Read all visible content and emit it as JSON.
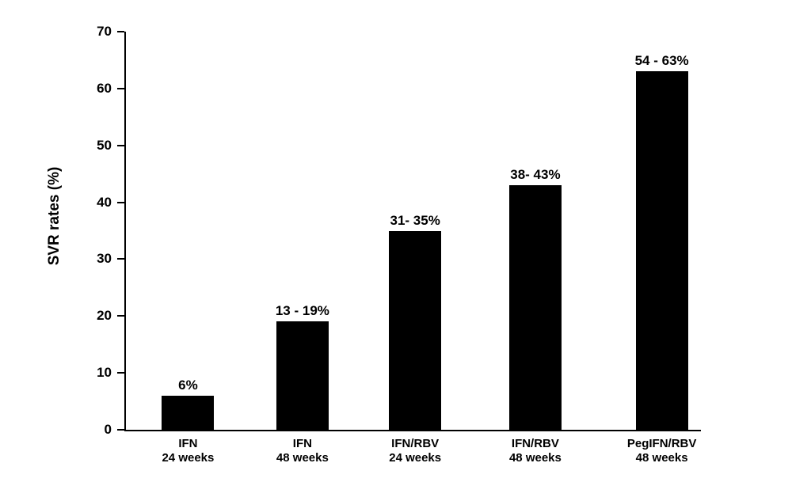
{
  "chart_data": {
    "type": "bar",
    "title": "",
    "xlabel": "",
    "ylabel": "SVR rates (%)",
    "ylim": [
      0,
      70
    ],
    "yticks": [
      0,
      10,
      20,
      30,
      40,
      50,
      60,
      70
    ],
    "grid": false,
    "legend": false,
    "bar_color": "#000000",
    "background_color": "#ffffff",
    "bars": [
      {
        "category_line1": "IFN",
        "category_line2": "24 weeks",
        "label": "6%",
        "value": 6,
        "range": [
          6,
          6
        ]
      },
      {
        "category_line1": "IFN",
        "category_line2": "48 weeks",
        "label": "13 - 19%",
        "value": 19,
        "range": [
          13,
          19
        ]
      },
      {
        "category_line1": "IFN/RBV",
        "category_line2": "24 weeks",
        "label": "31- 35%",
        "value": 35,
        "range": [
          31,
          35
        ]
      },
      {
        "category_line1": "IFN/RBV",
        "category_line2": "48 weeks",
        "label": "38- 43%",
        "value": 43,
        "range": [
          38,
          43
        ]
      },
      {
        "category_line1": "PegIFN/RBV",
        "category_line2": "48 weeks",
        "label": "54 - 63%",
        "value": 63,
        "range": [
          54,
          63
        ]
      }
    ]
  }
}
